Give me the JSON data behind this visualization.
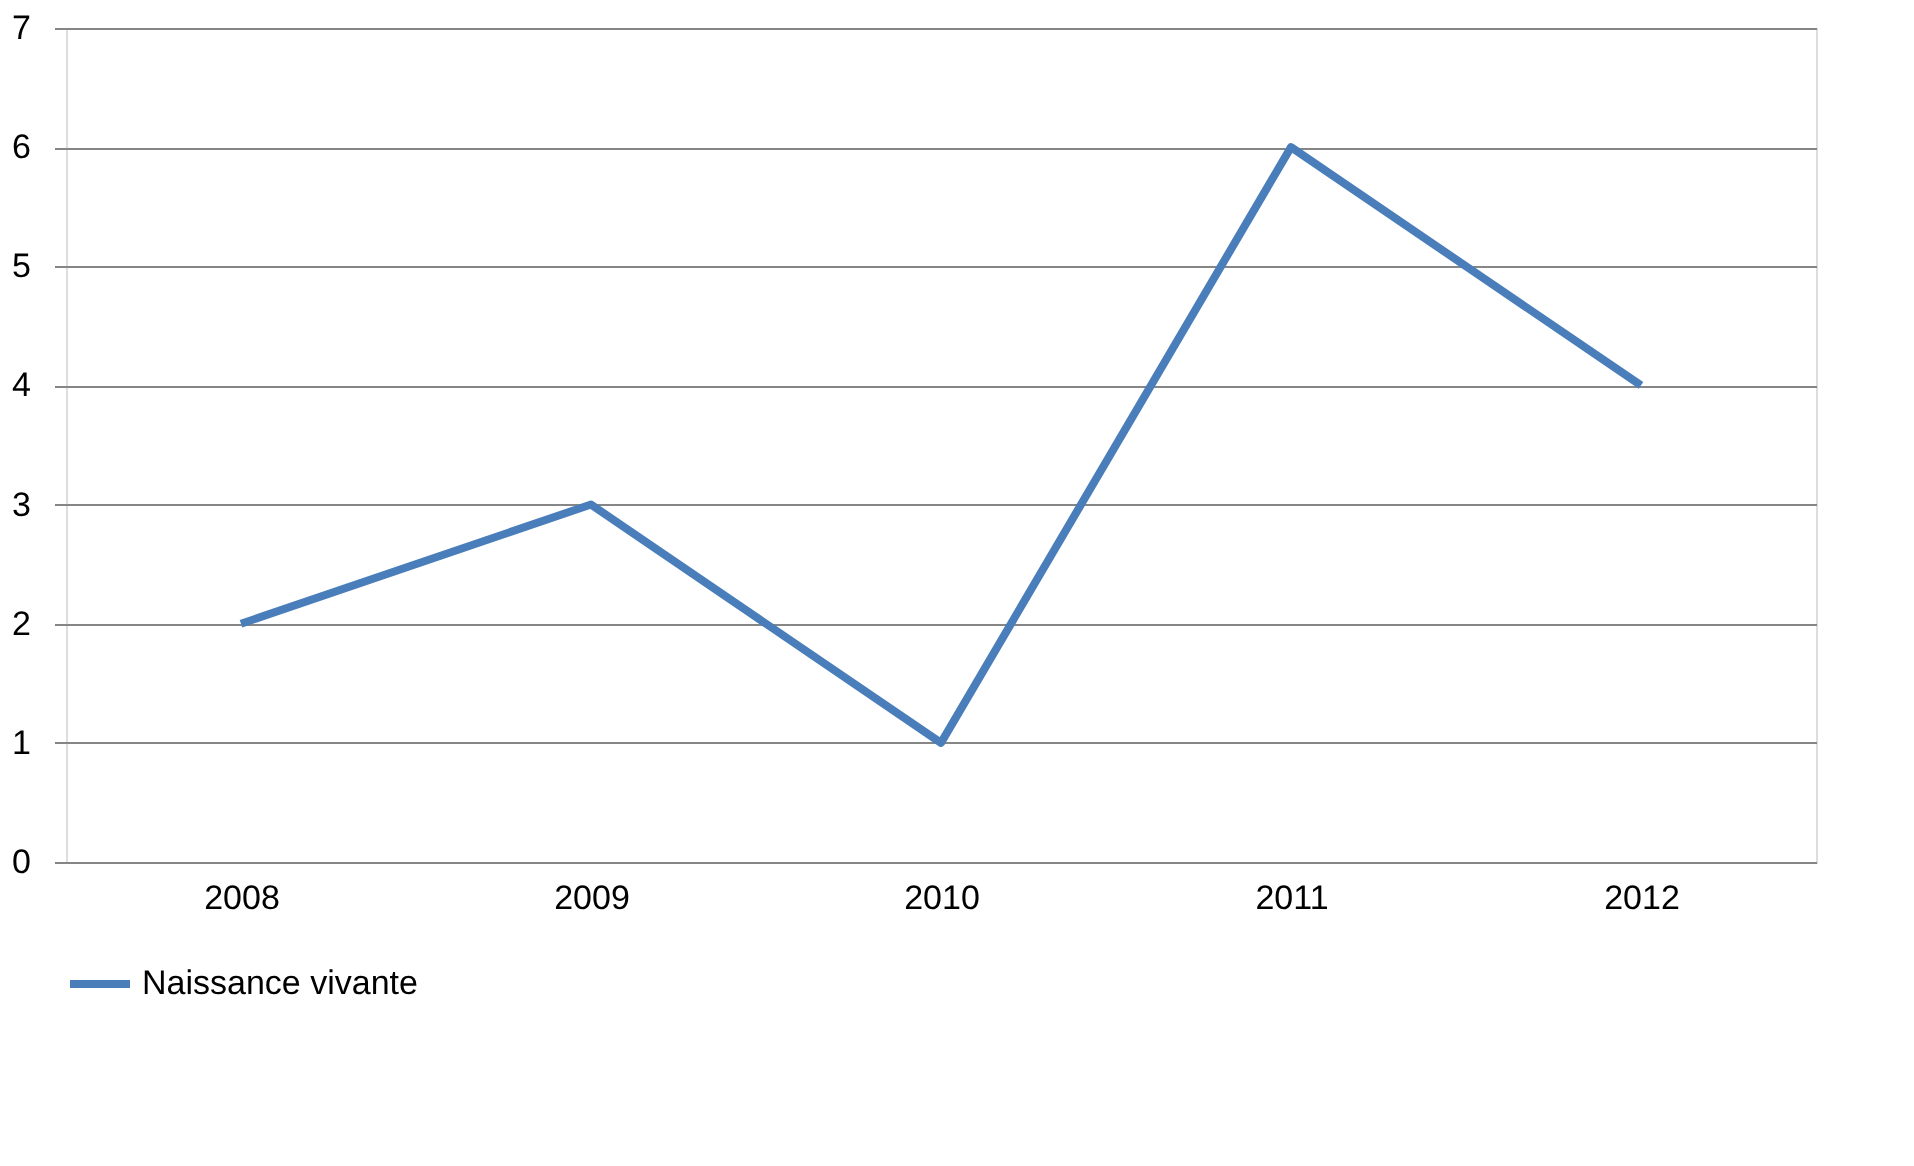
{
  "chart_data": {
    "type": "line",
    "categories": [
      "2008",
      "2009",
      "2010",
      "2011",
      "2012"
    ],
    "series": [
      {
        "name": "Naissance vivante",
        "color": "#4a7ebb",
        "values": [
          2,
          3,
          1,
          6,
          4
        ]
      }
    ],
    "ylim": [
      0,
      7
    ],
    "yticks": [
      0,
      1,
      2,
      3,
      4,
      5,
      6,
      7
    ],
    "grid": "y",
    "legend": "bottom",
    "marker": "none",
    "line_style": "solid"
  }
}
